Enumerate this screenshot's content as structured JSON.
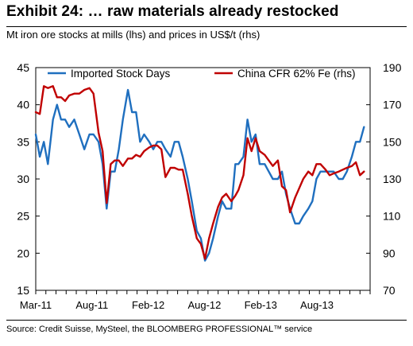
{
  "title": "Exhibit 24: … raw materials already restocked",
  "subtitle": "Mt iron ore stocks at mills (lhs) and prices in US$/t (rhs)",
  "source": "Source: Credit Suisse, MySteel, the BLOOMBERG PROFESSIONAL™ service",
  "chart_data": {
    "type": "line",
    "x_ticks": [
      "Mar-11",
      "Aug-11",
      "Feb-12",
      "Aug-12",
      "Feb-13",
      "Aug-13"
    ],
    "x_range": [
      0,
      33
    ],
    "y_left": {
      "range": [
        15,
        45
      ],
      "ticks": [
        15,
        20,
        25,
        30,
        35,
        40,
        45
      ]
    },
    "y_right": {
      "range": [
        70,
        190
      ],
      "ticks": [
        70,
        90,
        110,
        130,
        150,
        170,
        190
      ]
    },
    "grid": false,
    "legend_position": "top",
    "series": [
      {
        "name": "Imported Stock Days",
        "axis": "left",
        "color": "#1f6fbf",
        "points": [
          [
            0.0,
            36
          ],
          [
            0.4,
            33
          ],
          [
            0.8,
            35
          ],
          [
            1.2,
            32
          ],
          [
            1.7,
            38
          ],
          [
            2.1,
            40
          ],
          [
            2.5,
            38
          ],
          [
            2.9,
            38
          ],
          [
            3.3,
            37
          ],
          [
            3.8,
            38
          ],
          [
            4.3,
            36
          ],
          [
            4.8,
            34
          ],
          [
            5.3,
            36
          ],
          [
            5.7,
            36
          ],
          [
            6.2,
            35
          ],
          [
            6.6,
            32
          ],
          [
            7.0,
            26
          ],
          [
            7.4,
            31
          ],
          [
            7.8,
            31
          ],
          [
            8.2,
            34
          ],
          [
            8.6,
            38
          ],
          [
            9.1,
            42
          ],
          [
            9.5,
            39
          ],
          [
            9.9,
            39
          ],
          [
            10.3,
            35
          ],
          [
            10.7,
            36
          ],
          [
            11.2,
            35
          ],
          [
            11.6,
            34
          ],
          [
            12.0,
            35
          ],
          [
            12.4,
            35
          ],
          [
            12.8,
            34
          ],
          [
            13.3,
            33
          ],
          [
            13.7,
            35
          ],
          [
            14.1,
            35
          ],
          [
            14.5,
            33
          ],
          [
            15.0,
            30
          ],
          [
            15.4,
            27
          ],
          [
            15.9,
            23
          ],
          [
            16.3,
            22
          ],
          [
            16.7,
            19
          ],
          [
            17.1,
            20
          ],
          [
            17.5,
            22
          ],
          [
            18.0,
            25
          ],
          [
            18.4,
            27
          ],
          [
            18.8,
            26
          ],
          [
            19.3,
            26
          ],
          [
            19.7,
            32
          ],
          [
            20.0,
            32
          ],
          [
            20.5,
            33
          ],
          [
            20.9,
            38
          ],
          [
            21.3,
            35
          ],
          [
            21.7,
            36
          ],
          [
            22.1,
            32
          ],
          [
            22.6,
            32
          ],
          [
            23.0,
            31
          ],
          [
            23.4,
            30
          ],
          [
            23.9,
            30
          ],
          [
            24.3,
            31
          ],
          [
            24.7,
            28
          ],
          [
            25.1,
            26
          ],
          [
            25.6,
            24
          ],
          [
            26.0,
            24
          ],
          [
            26.4,
            25
          ],
          [
            26.9,
            26
          ],
          [
            27.3,
            27
          ],
          [
            27.7,
            30
          ],
          [
            28.1,
            31
          ],
          [
            28.6,
            31
          ],
          [
            29.0,
            31
          ],
          [
            29.4,
            31
          ],
          [
            29.9,
            30
          ],
          [
            30.3,
            30
          ],
          [
            30.7,
            31
          ],
          [
            31.2,
            33
          ],
          [
            31.6,
            35
          ],
          [
            32.0,
            35
          ],
          [
            32.4,
            37
          ]
        ]
      },
      {
        "name": "China CFR 62% Fe (rhs)",
        "axis": "right",
        "color": "#c00000",
        "points": [
          [
            0.0,
            166
          ],
          [
            0.4,
            165
          ],
          [
            0.8,
            180
          ],
          [
            1.2,
            179
          ],
          [
            1.7,
            180
          ],
          [
            2.1,
            174
          ],
          [
            2.5,
            174
          ],
          [
            2.9,
            172
          ],
          [
            3.3,
            175
          ],
          [
            3.8,
            176
          ],
          [
            4.3,
            176
          ],
          [
            4.8,
            178
          ],
          [
            5.3,
            179
          ],
          [
            5.7,
            176
          ],
          [
            6.2,
            155
          ],
          [
            6.6,
            145
          ],
          [
            7.0,
            117
          ],
          [
            7.4,
            138
          ],
          [
            7.8,
            140
          ],
          [
            8.2,
            140
          ],
          [
            8.6,
            137
          ],
          [
            9.1,
            141
          ],
          [
            9.5,
            141
          ],
          [
            9.9,
            143
          ],
          [
            10.3,
            142
          ],
          [
            10.7,
            145
          ],
          [
            11.2,
            147
          ],
          [
            11.6,
            148
          ],
          [
            12.0,
            148
          ],
          [
            12.4,
            146
          ],
          [
            12.8,
            131
          ],
          [
            13.3,
            136
          ],
          [
            13.7,
            136
          ],
          [
            14.1,
            135
          ],
          [
            14.5,
            135
          ],
          [
            15.0,
            122
          ],
          [
            15.4,
            110
          ],
          [
            15.9,
            98
          ],
          [
            16.3,
            95
          ],
          [
            16.7,
            87
          ],
          [
            17.1,
            98
          ],
          [
            17.5,
            106
          ],
          [
            18.0,
            115
          ],
          [
            18.4,
            120
          ],
          [
            18.8,
            122
          ],
          [
            19.3,
            118
          ],
          [
            19.7,
            121
          ],
          [
            20.0,
            124
          ],
          [
            20.5,
            132
          ],
          [
            20.9,
            152
          ],
          [
            21.3,
            145
          ],
          [
            21.7,
            152
          ],
          [
            22.1,
            145
          ],
          [
            22.6,
            143
          ],
          [
            23.0,
            140
          ],
          [
            23.4,
            137
          ],
          [
            23.9,
            140
          ],
          [
            24.3,
            126
          ],
          [
            24.7,
            124
          ],
          [
            25.1,
            112
          ],
          [
            25.6,
            120
          ],
          [
            26.0,
            125
          ],
          [
            26.4,
            130
          ],
          [
            26.9,
            134
          ],
          [
            27.3,
            132
          ],
          [
            27.7,
            138
          ],
          [
            28.1,
            138
          ],
          [
            28.6,
            135
          ],
          [
            29.0,
            132
          ],
          [
            29.4,
            133
          ],
          [
            29.9,
            134
          ],
          [
            30.3,
            135
          ],
          [
            30.7,
            136
          ],
          [
            31.2,
            137
          ],
          [
            31.6,
            139
          ],
          [
            32.0,
            132
          ],
          [
            32.4,
            134
          ]
        ]
      }
    ]
  }
}
